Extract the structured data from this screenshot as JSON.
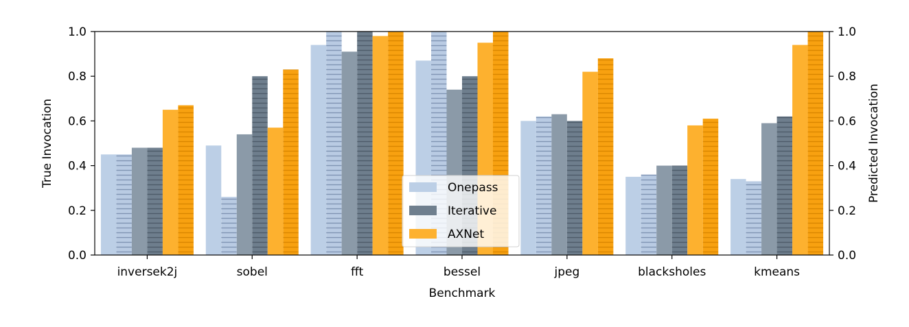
{
  "chart_data": {
    "type": "bar",
    "xlabel": "Benchmark",
    "ylabel": "True Invocation",
    "ylabel_right": "Predicted Invocation",
    "ylim": [
      0,
      1
    ],
    "yticks": [
      "0.0",
      "0.2",
      "0.4",
      "0.6",
      "0.8",
      "1.0"
    ],
    "categories": [
      "inversek2j",
      "sobel",
      "fft",
      "bessel",
      "jpeg",
      "blacksholes",
      "kmeans"
    ],
    "series": [
      {
        "name": "Onepass",
        "measure": "true",
        "color": "#bccfe6",
        "values": [
          0.45,
          0.49,
          0.94,
          0.87,
          0.6,
          0.35,
          0.34
        ]
      },
      {
        "name": "",
        "measure": "predicted",
        "color": "#bccfe6",
        "values": [
          0.45,
          0.26,
          1.0,
          1.0,
          0.62,
          0.36,
          0.33
        ]
      },
      {
        "name": "Iterative",
        "measure": "true",
        "color": "#8b9aa8",
        "values": [
          0.48,
          0.54,
          0.91,
          0.74,
          0.63,
          0.4,
          0.59
        ]
      },
      {
        "name": "",
        "measure": "predicted",
        "color": "#8b9aa8",
        "values": [
          0.48,
          0.8,
          1.0,
          0.8,
          0.6,
          0.4,
          0.62
        ]
      },
      {
        "name": "AXNet",
        "measure": "true",
        "color": "#fdb12f",
        "values": [
          0.65,
          0.57,
          0.98,
          0.95,
          0.82,
          0.58,
          0.94
        ]
      },
      {
        "name": "",
        "measure": "predicted",
        "color": "#f8a110",
        "values": [
          0.67,
          0.83,
          1.0,
          1.0,
          0.88,
          0.61,
          1.0
        ]
      }
    ],
    "legend": {
      "position": "lower center",
      "entries": [
        {
          "label": "Onepass",
          "color": "#bccfe6"
        },
        {
          "label": "Iterative",
          "color": "#6f7f8e"
        },
        {
          "label": "AXNet",
          "color": "#fdb12f"
        }
      ]
    },
    "grid": false
  }
}
